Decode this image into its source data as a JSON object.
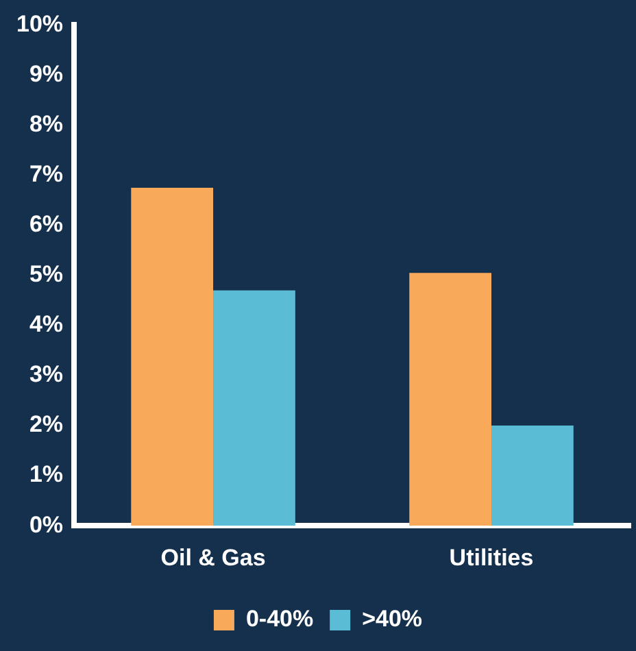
{
  "chart_data": {
    "type": "bar",
    "categories": [
      "Oil & Gas",
      "Utilities"
    ],
    "series": [
      {
        "name": "0-40%",
        "color": "#f9a95a",
        "values": [
          6.75,
          5.05
        ]
      },
      {
        "name": ">40%",
        "color": "#5bbcd6",
        "values": [
          4.7,
          2.0
        ]
      }
    ],
    "ylim": [
      0,
      10
    ],
    "yticks": [
      {
        "value": 0,
        "label": "0%"
      },
      {
        "value": 1,
        "label": "1%"
      },
      {
        "value": 2,
        "label": "2%"
      },
      {
        "value": 3,
        "label": "3%"
      },
      {
        "value": 4,
        "label": "4%"
      },
      {
        "value": 5,
        "label": "5%"
      },
      {
        "value": 6,
        "label": "6%"
      },
      {
        "value": 7,
        "label": "7%"
      },
      {
        "value": 8,
        "label": "8%"
      },
      {
        "value": 9,
        "label": "9%"
      },
      {
        "value": 10,
        "label": "10%"
      }
    ],
    "grid": false,
    "legend": "bottom"
  }
}
